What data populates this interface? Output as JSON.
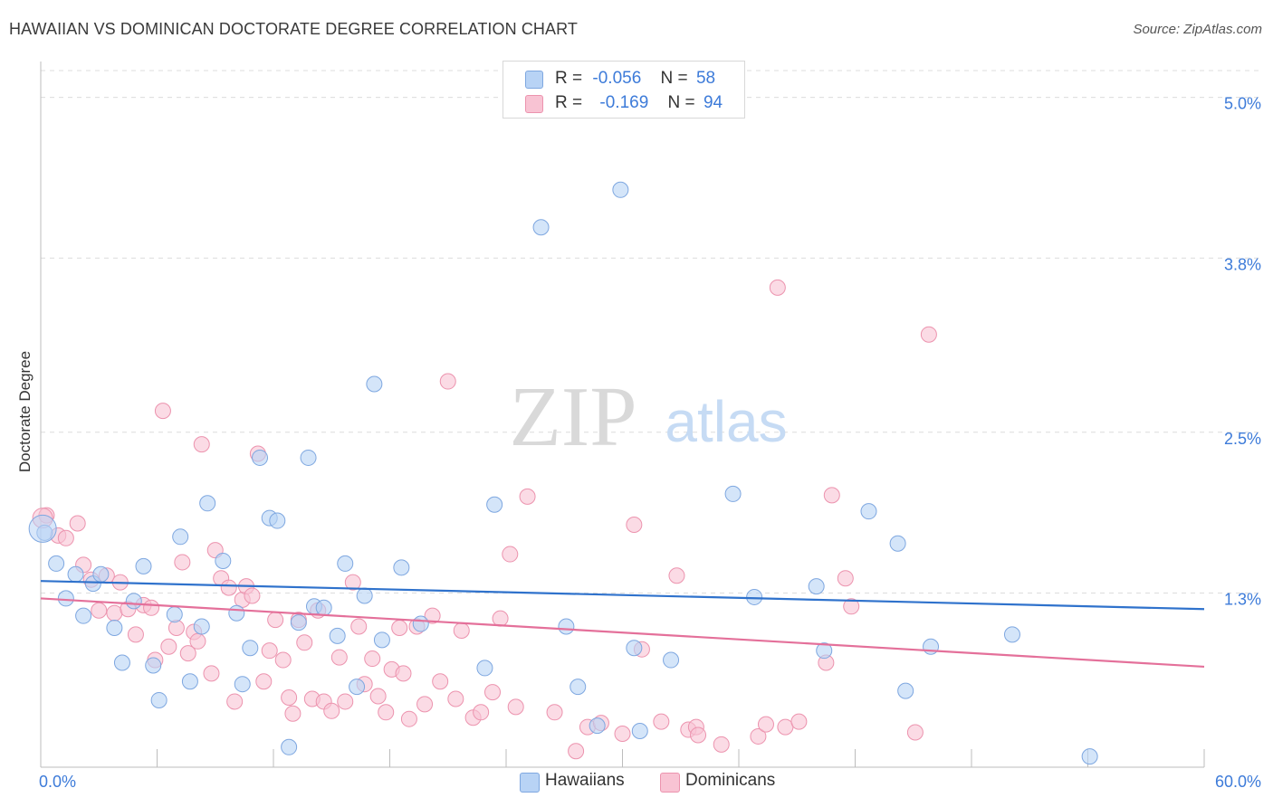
{
  "title": "HAWAIIAN VS DOMINICAN DOCTORATE DEGREE CORRELATION CHART",
  "source": "Source: ZipAtlas.com",
  "watermark": {
    "zip": "ZIP",
    "atlas": "atlas"
  },
  "legend_top": {
    "rows": [
      {
        "r_label": "R =",
        "r_value": "-0.056",
        "n_label": "N =",
        "n_value": "58"
      },
      {
        "r_label": "R =",
        "r_value": "-0.169",
        "n_label": "N =",
        "n_value": "94"
      }
    ]
  },
  "colors": {
    "hawaiians_fill": "#b8d3f5",
    "hawaiians_stroke": "#7ea7e0",
    "hawaiians_line": "#2f72cc",
    "dominicans_fill": "#f8c3d3",
    "dominicans_stroke": "#ec93ae",
    "dominicans_line": "#e4709a",
    "axis_value": "#3d7bd9",
    "grid": "#dcdcdc"
  },
  "chart_data": {
    "type": "scatter",
    "title": "HAWAIIAN VS DOMINICAN DOCTORATE DEGREE CORRELATION CHART",
    "xlabel": "",
    "ylabel": "Doctorate Degree",
    "xlim": [
      0,
      60
    ],
    "ylim": [
      0,
      5.2
    ],
    "x_tick_labels": [
      "0.0%",
      "60.0%"
    ],
    "y_ticks": [
      1.3,
      2.5,
      3.8,
      5.0
    ],
    "y_tick_labels": [
      "1.3%",
      "2.5%",
      "3.8%",
      "5.0%"
    ],
    "legend": [
      "Hawaiians",
      "Dominicans"
    ],
    "series": [
      {
        "name": "Hawaiians",
        "R": -0.056,
        "N": 58,
        "trend": {
          "x": [
            0,
            60
          ],
          "y": [
            1.39,
            1.18
          ]
        },
        "points": [
          [
            0.2,
            1.75
          ],
          [
            0.8,
            1.52
          ],
          [
            1.3,
            1.26
          ],
          [
            1.8,
            1.44
          ],
          [
            2.2,
            1.13
          ],
          [
            2.7,
            1.37
          ],
          [
            3.1,
            1.44
          ],
          [
            3.8,
            1.04
          ],
          [
            4.2,
            0.78
          ],
          [
            4.8,
            1.24
          ],
          [
            5.3,
            1.5
          ],
          [
            5.8,
            0.76
          ],
          [
            6.1,
            0.5
          ],
          [
            6.9,
            1.14
          ],
          [
            7.2,
            1.72
          ],
          [
            7.7,
            0.64
          ],
          [
            8.3,
            1.05
          ],
          [
            8.6,
            1.97
          ],
          [
            9.4,
            1.54
          ],
          [
            10.1,
            1.15
          ],
          [
            10.4,
            0.62
          ],
          [
            10.8,
            0.89
          ],
          [
            11.3,
            2.31
          ],
          [
            11.8,
            1.86
          ],
          [
            12.2,
            1.84
          ],
          [
            12.8,
            0.15
          ],
          [
            13.3,
            1.08
          ],
          [
            13.8,
            2.31
          ],
          [
            14.1,
            1.2
          ],
          [
            14.6,
            1.19
          ],
          [
            15.3,
            0.98
          ],
          [
            15.7,
            1.52
          ],
          [
            16.3,
            0.6
          ],
          [
            16.7,
            1.28
          ],
          [
            17.2,
            2.86
          ],
          [
            17.6,
            0.95
          ],
          [
            18.6,
            1.49
          ],
          [
            19.6,
            1.07
          ],
          [
            22.9,
            0.74
          ],
          [
            23.4,
            1.96
          ],
          [
            25.8,
            4.03
          ],
          [
            27.1,
            1.05
          ],
          [
            27.7,
            0.6
          ],
          [
            28.7,
            0.31
          ],
          [
            29.9,
            4.31
          ],
          [
            30.6,
            0.89
          ],
          [
            30.9,
            0.27
          ],
          [
            32.5,
            0.8
          ],
          [
            35.7,
            2.04
          ],
          [
            36.8,
            1.27
          ],
          [
            40.0,
            1.35
          ],
          [
            40.4,
            0.87
          ],
          [
            42.7,
            1.91
          ],
          [
            44.2,
            1.67
          ],
          [
            44.6,
            0.57
          ],
          [
            45.9,
            0.9
          ],
          [
            50.1,
            0.99
          ],
          [
            54.1,
            0.08
          ]
        ]
      },
      {
        "name": "Dominicans",
        "R": -0.169,
        "N": 94,
        "trend": {
          "x": [
            0,
            60
          ],
          "y": [
            1.26,
            0.75
          ]
        },
        "points": [
          [
            0.3,
            1.88
          ],
          [
            0.9,
            1.73
          ],
          [
            1.3,
            1.71
          ],
          [
            1.9,
            1.82
          ],
          [
            2.2,
            1.51
          ],
          [
            2.6,
            1.4
          ],
          [
            3.0,
            1.17
          ],
          [
            3.4,
            1.43
          ],
          [
            3.8,
            1.15
          ],
          [
            4.1,
            1.38
          ],
          [
            4.5,
            1.18
          ],
          [
            4.9,
            0.99
          ],
          [
            5.3,
            1.21
          ],
          [
            5.7,
            1.19
          ],
          [
            5.9,
            0.8
          ],
          [
            6.3,
            2.66
          ],
          [
            6.6,
            0.9
          ],
          [
            7.0,
            1.04
          ],
          [
            7.3,
            1.53
          ],
          [
            7.6,
            0.85
          ],
          [
            7.9,
            1.01
          ],
          [
            8.1,
            0.94
          ],
          [
            8.3,
            2.41
          ],
          [
            8.8,
            0.7
          ],
          [
            9.0,
            1.62
          ],
          [
            9.3,
            1.41
          ],
          [
            9.7,
            1.34
          ],
          [
            10.0,
            0.49
          ],
          [
            10.4,
            1.25
          ],
          [
            10.6,
            1.35
          ],
          [
            10.9,
            1.28
          ],
          [
            11.2,
            2.34
          ],
          [
            11.5,
            0.64
          ],
          [
            11.8,
            0.87
          ],
          [
            12.1,
            1.1
          ],
          [
            12.5,
            0.8
          ],
          [
            12.8,
            0.52
          ],
          [
            13.0,
            0.4
          ],
          [
            13.3,
            1.1
          ],
          [
            13.6,
            0.93
          ],
          [
            14.0,
            0.51
          ],
          [
            14.3,
            1.17
          ],
          [
            14.6,
            0.49
          ],
          [
            15.0,
            0.42
          ],
          [
            15.4,
            0.82
          ],
          [
            15.7,
            0.49
          ],
          [
            16.1,
            1.38
          ],
          [
            16.4,
            1.05
          ],
          [
            16.7,
            0.62
          ],
          [
            17.1,
            0.81
          ],
          [
            17.4,
            0.53
          ],
          [
            17.8,
            0.41
          ],
          [
            18.1,
            0.73
          ],
          [
            18.5,
            1.04
          ],
          [
            18.7,
            0.7
          ],
          [
            19.0,
            0.36
          ],
          [
            19.4,
            1.05
          ],
          [
            19.8,
            0.47
          ],
          [
            20.2,
            1.13
          ],
          [
            20.6,
            0.64
          ],
          [
            21.0,
            2.88
          ],
          [
            21.4,
            0.51
          ],
          [
            21.7,
            1.02
          ],
          [
            22.3,
            0.37
          ],
          [
            22.7,
            0.41
          ],
          [
            23.3,
            0.56
          ],
          [
            23.7,
            1.11
          ],
          [
            24.2,
            1.59
          ],
          [
            24.5,
            0.45
          ],
          [
            25.1,
            2.02
          ],
          [
            26.5,
            0.41
          ],
          [
            27.6,
            0.12
          ],
          [
            28.2,
            0.3
          ],
          [
            28.9,
            0.33
          ],
          [
            30.0,
            0.25
          ],
          [
            30.6,
            1.81
          ],
          [
            31.0,
            0.88
          ],
          [
            32.0,
            0.34
          ],
          [
            32.8,
            1.43
          ],
          [
            33.4,
            0.28
          ],
          [
            33.8,
            0.3
          ],
          [
            33.9,
            0.24
          ],
          [
            35.1,
            0.17
          ],
          [
            37.0,
            0.23
          ],
          [
            37.4,
            0.32
          ],
          [
            38.0,
            3.58
          ],
          [
            38.4,
            0.3
          ],
          [
            39.1,
            0.34
          ],
          [
            40.5,
            0.78
          ],
          [
            40.8,
            2.03
          ],
          [
            41.5,
            1.41
          ],
          [
            41.8,
            1.2
          ],
          [
            45.1,
            0.26
          ],
          [
            45.8,
            3.23
          ]
        ]
      }
    ]
  },
  "legend_bottom": {
    "items": [
      "Hawaiians",
      "Dominicans"
    ]
  }
}
